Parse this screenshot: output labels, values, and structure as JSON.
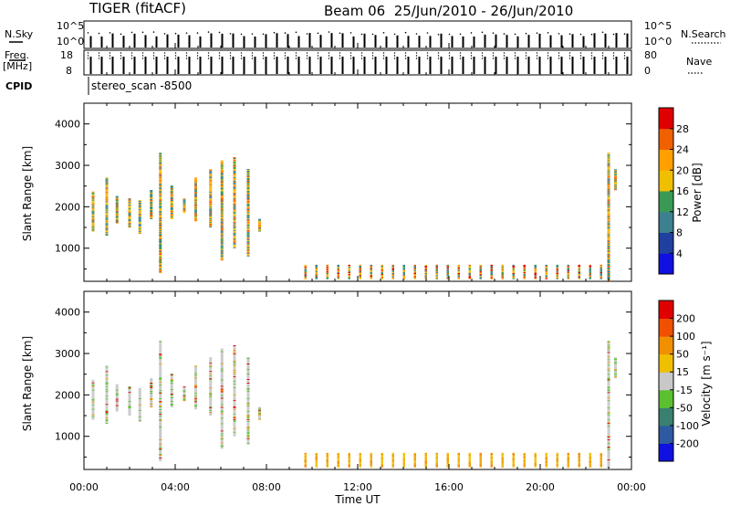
{
  "header": {
    "station": "TIGER (fitACF)",
    "beam_info": "Beam 06  25/Jun/2010 - 26/Jun/2010"
  },
  "panels": {
    "nsky": {
      "label": "N.Sky",
      "ticks_left": [
        "10^5",
        "10^0"
      ],
      "ticks_right": [
        "10^5",
        "10^0"
      ],
      "right_label": "N.Search"
    },
    "freq": {
      "label_line1": "Freq.",
      "label_line2": "[MHz]",
      "ticks_left": [
        "18",
        "8"
      ],
      "ticks_right": [
        "80",
        "0"
      ],
      "right_label": "Nave"
    },
    "cpid": {
      "label": "CPID",
      "value": "stereo_scan -8500"
    }
  },
  "colors": {
    "power_scale": [
      "#1010e0",
      "#2040a0",
      "#3d8090",
      "#3a9a55",
      "#f0c000",
      "#ffa000",
      "#f06000",
      "#e00000"
    ],
    "velocity_scale": [
      "#1010e0",
      "#2d5aa0",
      "#3a8070",
      "#5ac030",
      "#c8c8c8",
      "#f0c000",
      "#f09000",
      "#f05000",
      "#e00000"
    ],
    "frame": "#000000"
  },
  "chart_data": [
    {
      "type": "heatmap",
      "title": "",
      "xlabel": "Time UT",
      "ylabel": "Slant Range [km]",
      "x_ticks": [
        "00:00",
        "04:00",
        "08:00",
        "12:00",
        "16:00",
        "20:00",
        "00:00"
      ],
      "xlim": [
        0,
        24
      ],
      "ylim": [
        200,
        4500
      ],
      "y_ticks": [
        "1000",
        "2000",
        "3000",
        "4000"
      ],
      "colorbar": {
        "label": "Power [dB]",
        "ticks": [
          "4",
          "8",
          "12",
          "16",
          "20",
          "24",
          "28"
        ],
        "range": [
          0,
          32
        ]
      },
      "scatter_streaks": [
        {
          "t": 0.4,
          "r0": 1400,
          "r1": 2350
        },
        {
          "t": 1.0,
          "r0": 1300,
          "r1": 2700
        },
        {
          "t": 1.45,
          "r0": 1600,
          "r1": 2250
        },
        {
          "t": 2.0,
          "r0": 1500,
          "r1": 2200
        },
        {
          "t": 2.45,
          "r0": 1350,
          "r1": 2150
        },
        {
          "t": 2.95,
          "r0": 1700,
          "r1": 2400
        },
        {
          "t": 3.35,
          "r0": 400,
          "r1": 3300
        },
        {
          "t": 3.85,
          "r0": 1700,
          "r1": 2500
        },
        {
          "t": 4.4,
          "r0": 1850,
          "r1": 2200
        },
        {
          "t": 4.9,
          "r0": 1650,
          "r1": 2700
        },
        {
          "t": 5.55,
          "r0": 1500,
          "r1": 2900
        },
        {
          "t": 6.05,
          "r0": 700,
          "r1": 3100
        },
        {
          "t": 6.6,
          "r0": 1000,
          "r1": 3200
        },
        {
          "t": 7.2,
          "r0": 800,
          "r1": 2900
        },
        {
          "t": 7.7,
          "r0": 1400,
          "r1": 1700
        },
        {
          "t": 23.0,
          "r0": 200,
          "r1": 3300
        },
        {
          "t": 23.3,
          "r0": 2400,
          "r1": 2900
        }
      ]
    },
    {
      "type": "heatmap",
      "title": "",
      "xlabel": "Time UT",
      "ylabel": "Slant Range [km]",
      "x_ticks": [
        "00:00",
        "04:00",
        "08:00",
        "12:00",
        "16:00",
        "20:00",
        "00:00"
      ],
      "xlim": [
        0,
        24
      ],
      "ylim": [
        200,
        4500
      ],
      "y_ticks": [
        "1000",
        "2000",
        "3000",
        "4000"
      ],
      "colorbar": {
        "label": "Velocity [m s⁻¹]",
        "ticks": [
          "200",
          "100",
          "50",
          "15",
          "-15",
          "-50",
          "-100",
          "-200"
        ],
        "range": [
          -300,
          300
        ]
      }
    }
  ]
}
